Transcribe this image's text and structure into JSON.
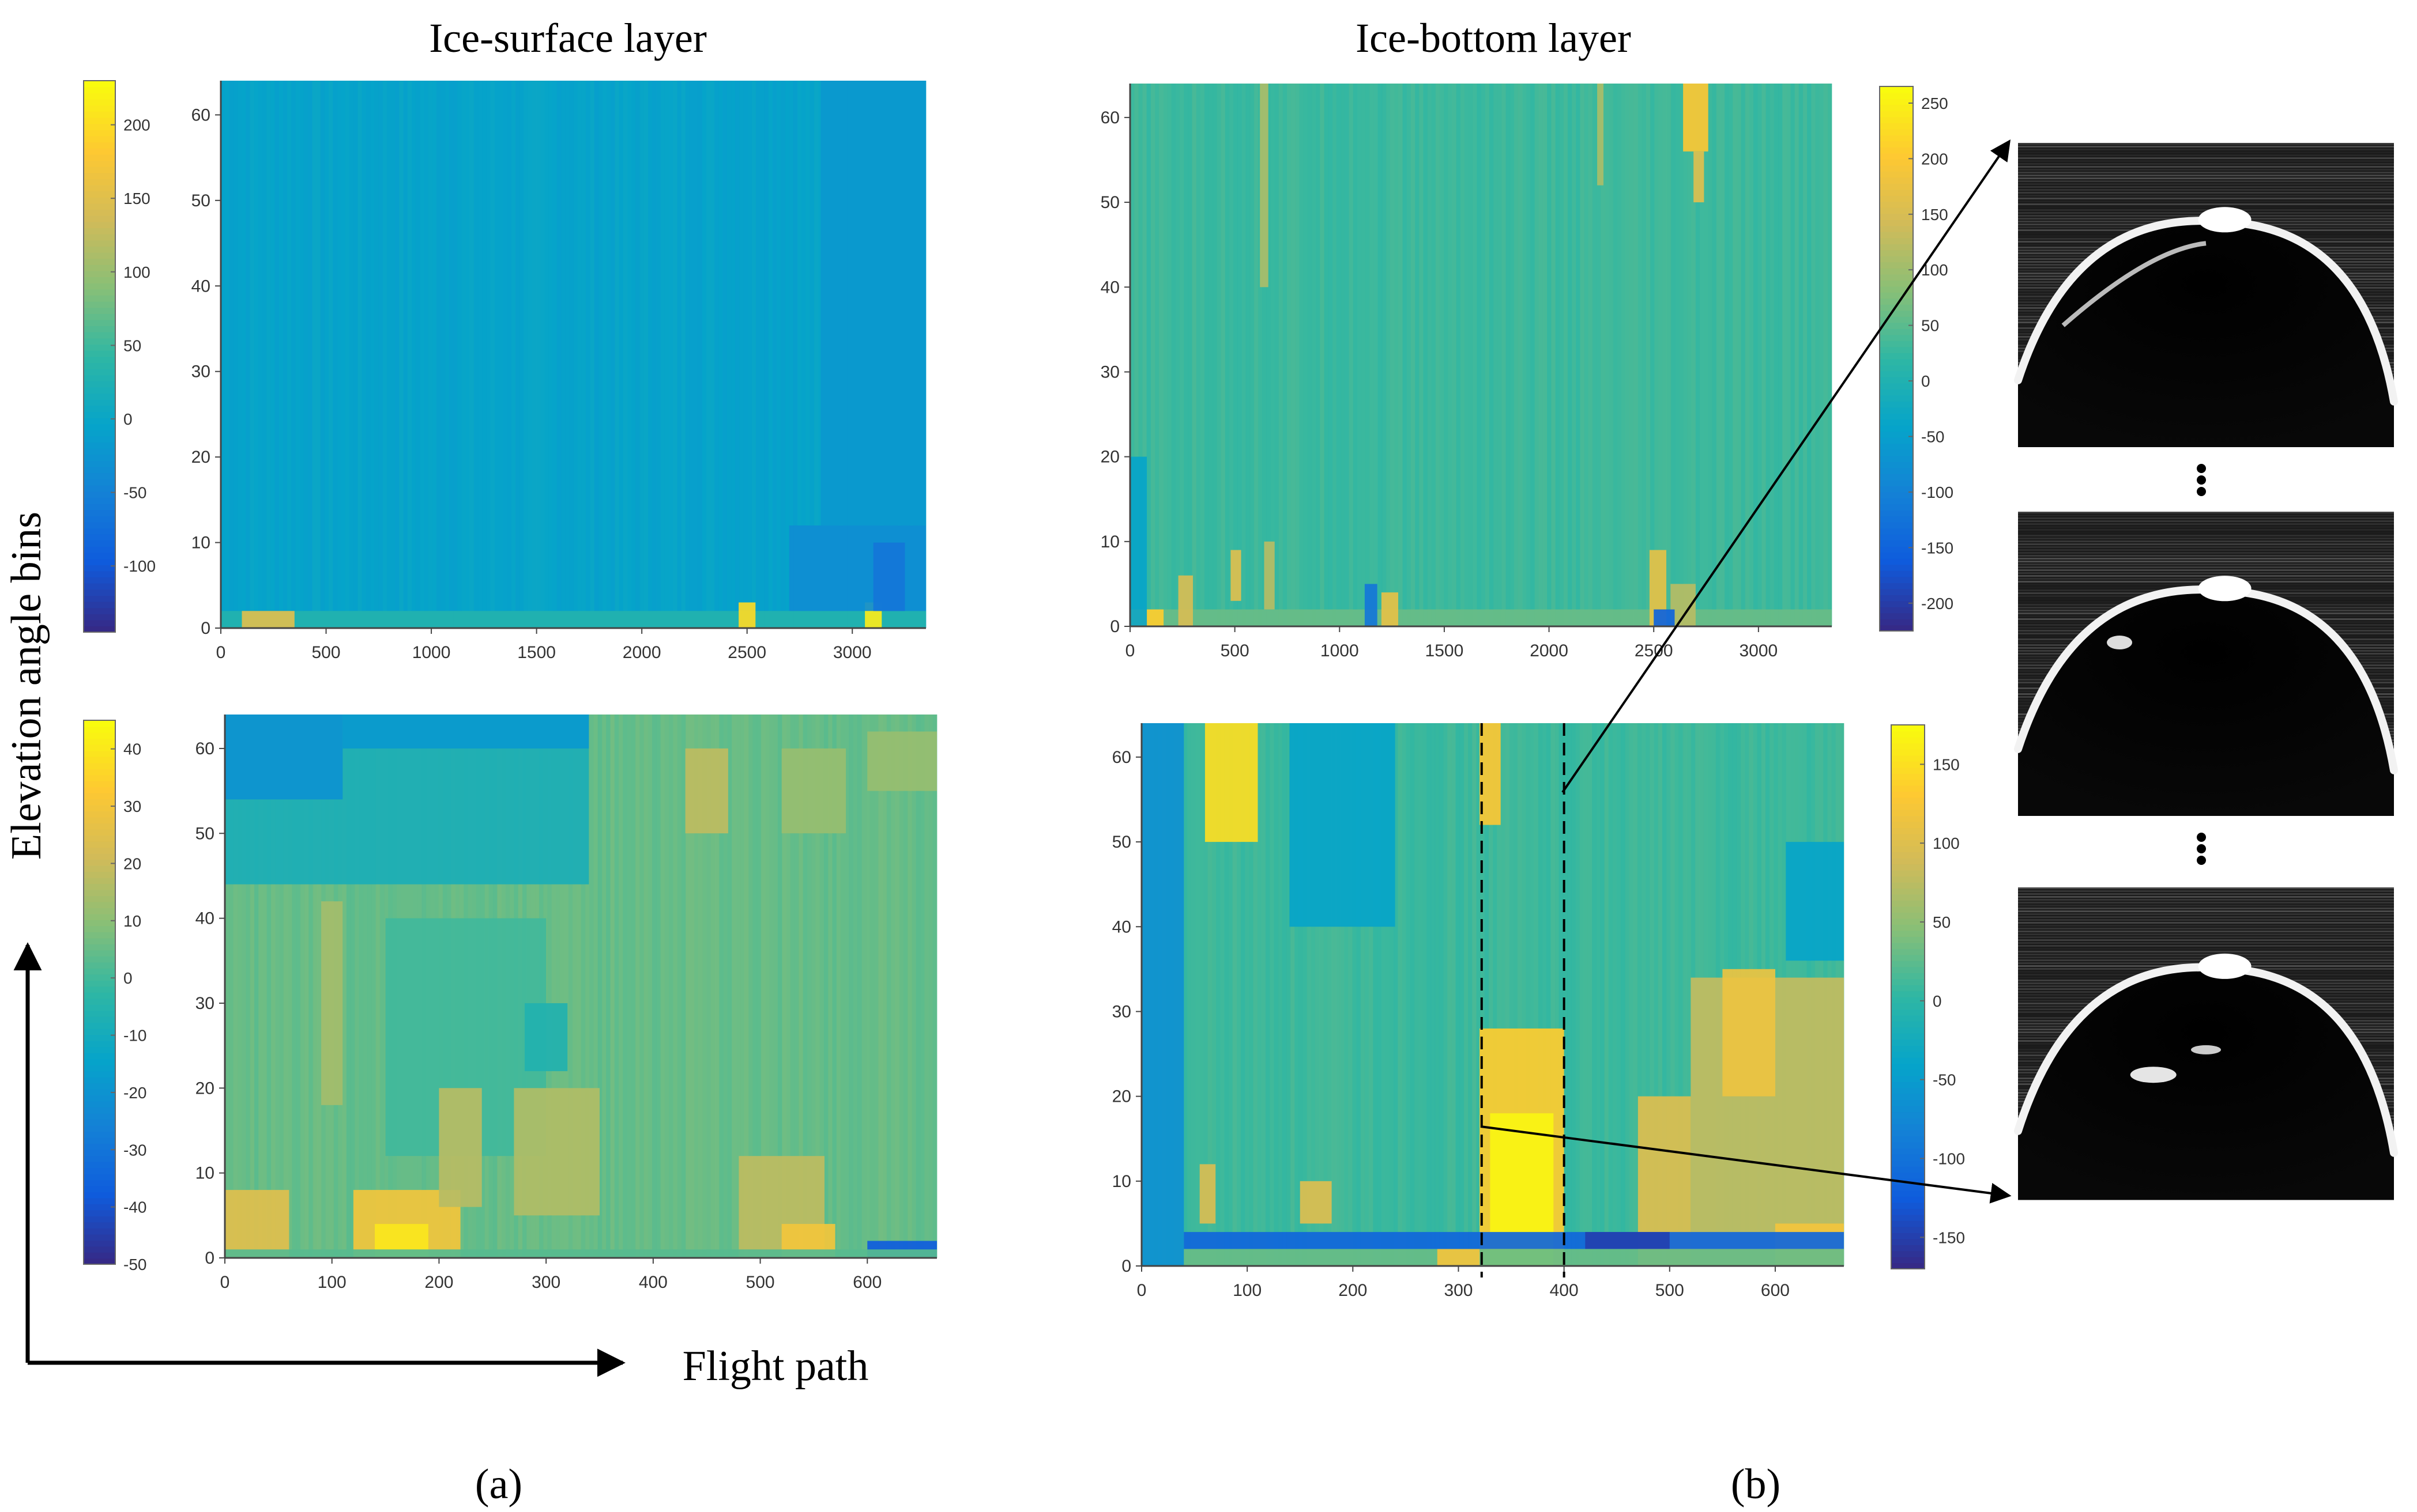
{
  "headings": {
    "left": "Ice-surface layer",
    "right": "Ice-bottom layer"
  },
  "axis_labels": {
    "y": "Elevation angle bins",
    "x": "Flight path"
  },
  "panel_labels": {
    "a": "(a)",
    "b": "(b)"
  },
  "colormap": [
    "#352a87",
    "#0f5cdd",
    "#1481d6",
    "#06a4ca",
    "#2eb7a4",
    "#87bf77",
    "#d1bb59",
    "#fec832",
    "#f9fb0e"
  ],
  "chart_data": [
    {
      "id": "surface-top",
      "type": "heatmap",
      "xlim": [
        0,
        3350
      ],
      "xticks": [
        0,
        500,
        1000,
        1500,
        2000,
        2500,
        3000
      ],
      "ylim": [
        0,
        64
      ],
      "yticks": [
        0,
        10,
        20,
        30,
        40,
        50,
        60
      ],
      "clim": [
        -145,
        230
      ],
      "cticks": [
        -100,
        -50,
        0,
        50,
        100,
        150,
        200
      ],
      "base": -5,
      "regions": [
        {
          "x": [
            0,
            3350
          ],
          "y": [
            0,
            2
          ],
          "v": 30
        },
        {
          "x": [
            100,
            350
          ],
          "y": [
            0,
            2
          ],
          "v": 150
        },
        {
          "x": [
            2460,
            2540
          ],
          "y": [
            0,
            3
          ],
          "v": 200
        },
        {
          "x": [
            3060,
            3140
          ],
          "y": [
            0,
            3
          ],
          "v": 215
        },
        {
          "x": [
            2700,
            3350
          ],
          "y": [
            2,
            12
          ],
          "v": -35
        },
        {
          "x": [
            3100,
            3250
          ],
          "y": [
            2,
            10
          ],
          "v": -65
        },
        {
          "x": [
            2850,
            3350
          ],
          "y": [
            12,
            64
          ],
          "v": -20
        }
      ]
    },
    {
      "id": "bottom-top",
      "type": "heatmap",
      "xlim": [
        0,
        3350
      ],
      "xticks": [
        0,
        500,
        1000,
        1500,
        2000,
        2500,
        3000
      ],
      "ylim": [
        0,
        64
      ],
      "yticks": [
        0,
        10,
        20,
        30,
        40,
        50,
        60
      ],
      "clim": [
        -225,
        265
      ],
      "cticks": [
        -200,
        -150,
        -100,
        -50,
        0,
        50,
        100,
        150,
        200,
        250
      ],
      "base": 30,
      "regions": [
        {
          "x": [
            0,
            3350
          ],
          "y": [
            0,
            2
          ],
          "v": 60
        },
        {
          "x": [
            0,
            160
          ],
          "y": [
            0,
            2
          ],
          "v": 210
        },
        {
          "x": [
            230,
            300
          ],
          "y": [
            0,
            6
          ],
          "v": 150
        },
        {
          "x": [
            480,
            530
          ],
          "y": [
            3,
            9
          ],
          "v": 160
        },
        {
          "x": [
            640,
            690
          ],
          "y": [
            2,
            10
          ],
          "v": 120
        },
        {
          "x": [
            620,
            660
          ],
          "y": [
            40,
            64
          ],
          "v": 110
        },
        {
          "x": [
            1200,
            1280
          ],
          "y": [
            0,
            4
          ],
          "v": 170
        },
        {
          "x": [
            2480,
            2560
          ],
          "y": [
            0,
            9
          ],
          "v": 170
        },
        {
          "x": [
            2580,
            2700
          ],
          "y": [
            0,
            5
          ],
          "v": 120
        },
        {
          "x": [
            2640,
            2760
          ],
          "y": [
            56,
            64
          ],
          "v": 200
        },
        {
          "x": [
            2690,
            2740
          ],
          "y": [
            50,
            56
          ],
          "v": 160
        },
        {
          "x": [
            2230,
            2260
          ],
          "y": [
            52,
            64
          ],
          "v": 110
        },
        {
          "x": [
            1120,
            1180
          ],
          "y": [
            0,
            5
          ],
          "v": -120
        },
        {
          "x": [
            2500,
            2600
          ],
          "y": [
            0,
            2
          ],
          "v": -150
        },
        {
          "x": [
            0,
            80
          ],
          "y": [
            0,
            20
          ],
          "v": -40
        }
      ]
    },
    {
      "id": "surface-bottom",
      "type": "heatmap",
      "xlim": [
        0,
        665
      ],
      "xticks": [
        0,
        100,
        200,
        300,
        400,
        500,
        600
      ],
      "ylim": [
        0,
        64
      ],
      "yticks": [
        0,
        10,
        20,
        30,
        40,
        50,
        60
      ],
      "clim": [
        -50,
        45
      ],
      "cticks": [
        -50,
        -40,
        -30,
        -20,
        -10,
        0,
        10,
        20,
        30,
        40
      ],
      "base": 5,
      "regions": [
        {
          "x": [
            0,
            340
          ],
          "y": [
            44,
            64
          ],
          "v": -8
        },
        {
          "x": [
            0,
            110
          ],
          "y": [
            54,
            64
          ],
          "v": -20
        },
        {
          "x": [
            110,
            340
          ],
          "y": [
            60,
            64
          ],
          "v": -18
        },
        {
          "x": [
            150,
            300
          ],
          "y": [
            12,
            40
          ],
          "v": 0
        },
        {
          "x": [
            280,
            320
          ],
          "y": [
            22,
            30
          ],
          "v": -6
        },
        {
          "x": [
            0,
            60
          ],
          "y": [
            0,
            8
          ],
          "v": 25
        },
        {
          "x": [
            120,
            220
          ],
          "y": [
            0,
            8
          ],
          "v": 30
        },
        {
          "x": [
            140,
            190
          ],
          "y": [
            0,
            4
          ],
          "v": 40
        },
        {
          "x": [
            200,
            240
          ],
          "y": [
            6,
            20
          ],
          "v": 17
        },
        {
          "x": [
            270,
            350
          ],
          "y": [
            5,
            20
          ],
          "v": 16
        },
        {
          "x": [
            90,
            110
          ],
          "y": [
            18,
            42
          ],
          "v": 14
        },
        {
          "x": [
            430,
            470
          ],
          "y": [
            50,
            60
          ],
          "v": 18
        },
        {
          "x": [
            480,
            560
          ],
          "y": [
            0,
            12
          ],
          "v": 18
        },
        {
          "x": [
            520,
            570
          ],
          "y": [
            0,
            4
          ],
          "v": 30
        },
        {
          "x": [
            600,
            665
          ],
          "y": [
            0,
            2
          ],
          "v": -38
        },
        {
          "x": [
            0,
            665
          ],
          "y": [
            0,
            1
          ],
          "v": 3
        },
        {
          "x": [
            520,
            580
          ],
          "y": [
            50,
            60
          ],
          "v": 12
        },
        {
          "x": [
            600,
            665
          ],
          "y": [
            55,
            62
          ],
          "v": 12
        }
      ]
    },
    {
      "id": "bottom-bottom",
      "type": "heatmap",
      "xlim": [
        0,
        665
      ],
      "xticks": [
        0,
        100,
        200,
        300,
        400,
        500,
        600
      ],
      "ylim": [
        0,
        64
      ],
      "yticks": [
        0,
        10,
        20,
        30,
        40,
        50,
        60
      ],
      "clim": [
        -170,
        175
      ],
      "cticks": [
        -150,
        -100,
        -50,
        0,
        50,
        100,
        150
      ],
      "base": 10,
      "regions": [
        {
          "x": [
            0,
            40
          ],
          "y": [
            0,
            64
          ],
          "v": -65
        },
        {
          "x": [
            140,
            240
          ],
          "y": [
            40,
            64
          ],
          "v": -40
        },
        {
          "x": [
            60,
            110
          ],
          "y": [
            50,
            64
          ],
          "v": 150
        },
        {
          "x": [
            320,
            340
          ],
          "y": [
            52,
            64
          ],
          "v": 130
        },
        {
          "x": [
            320,
            400
          ],
          "y": [
            0,
            28
          ],
          "v": 135
        },
        {
          "x": [
            330,
            390
          ],
          "y": [
            0,
            18
          ],
          "v": 170
        },
        {
          "x": [
            470,
            520
          ],
          "y": [
            0,
            20
          ],
          "v": 100
        },
        {
          "x": [
            520,
            665
          ],
          "y": [
            0,
            34
          ],
          "v": 80
        },
        {
          "x": [
            550,
            600
          ],
          "y": [
            20,
            35
          ],
          "v": 115
        },
        {
          "x": [
            600,
            665
          ],
          "y": [
            0,
            5
          ],
          "v": 120
        },
        {
          "x": [
            40,
            665
          ],
          "y": [
            2,
            4
          ],
          "v": -115
        },
        {
          "x": [
            420,
            500
          ],
          "y": [
            2,
            4
          ],
          "v": -150
        },
        {
          "x": [
            40,
            665
          ],
          "y": [
            0,
            2
          ],
          "v": 30
        },
        {
          "x": [
            280,
            320
          ],
          "y": [
            0,
            2
          ],
          "v": 120
        },
        {
          "x": [
            55,
            70
          ],
          "y": [
            5,
            12
          ],
          "v": 95
        },
        {
          "x": [
            150,
            180
          ],
          "y": [
            5,
            10
          ],
          "v": 100
        },
        {
          "x": [
            610,
            665
          ],
          "y": [
            36,
            50
          ],
          "v": -40
        }
      ],
      "marker_lines": [
        322,
        400
      ]
    }
  ],
  "radargrams": [
    "radargram-top",
    "radargram-middle",
    "radargram-bottom"
  ]
}
